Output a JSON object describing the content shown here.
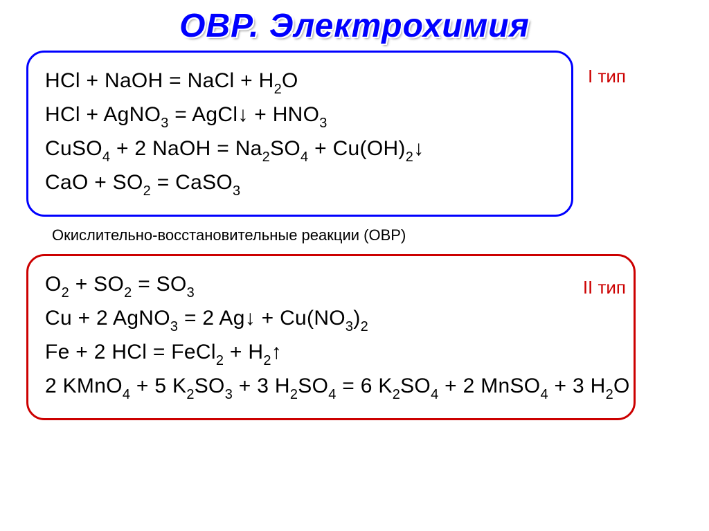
{
  "title": "ОВР. Электрохимия",
  "labels": {
    "type1": "I тип",
    "type2": "II тип",
    "note": "Окислительно-восстановительные реакции (ОВР)"
  },
  "box1": {
    "border_color": "#0000ff",
    "equations": [
      {
        "html": "HCl + NaOH = NaCl + H<span class='sub'>2</span>O"
      },
      {
        "html": "HCl + AgNO<span class='sub'>3</span> = AgCl↓ + HNO<span class='sub'>3</span>"
      },
      {
        "html": "CuSO<span class='sub'>4</span> + 2 NaOH = Na<span class='sub'>2</span>SO<span class='sub'>4</span> + Cu(OH)<span class='sub'>2</span>↓"
      },
      {
        "html": "CaO + SO<span class='sub'>2</span> = CaSO<span class='sub'>3</span>"
      }
    ]
  },
  "box2": {
    "border_color": "#cc0000",
    "equations": [
      {
        "html": "O<span class='sub'>2</span> + SO<span class='sub'>2</span> = SO<span class='sub'>3</span>"
      },
      {
        "html": "Cu + 2 AgNO<span class='sub'>3</span> = 2 Ag↓ + Cu(NO<span class='sub'>3</span>)<span class='sub'>2</span>"
      },
      {
        "html": "Fe + 2 HCl = FeCl<span class='sub'>2</span> + H<span class='sub'>2</span>↑"
      },
      {
        "html": "2 KMnO<span class='sub'>4</span> + 5 K<span class='sub'>2</span>SO<span class='sub'>3</span> + 3 H<span class='sub'>2</span>SO<span class='sub'>4</span> = 6 K<span class='sub'>2</span>SO<span class='sub'>4</span> + 2 MnSO<span class='sub'>4</span> + 3 H<span class='sub'>2</span>O"
      }
    ]
  },
  "colors": {
    "title_color": "#0000ff",
    "label_color": "#cc0000",
    "text_color": "#000000",
    "background": "#ffffff"
  },
  "typography": {
    "title_fontsize": 48,
    "equation_fontsize": 30,
    "subscript_fontsize": 20,
    "label_fontsize": 26,
    "note_fontsize": 22
  }
}
